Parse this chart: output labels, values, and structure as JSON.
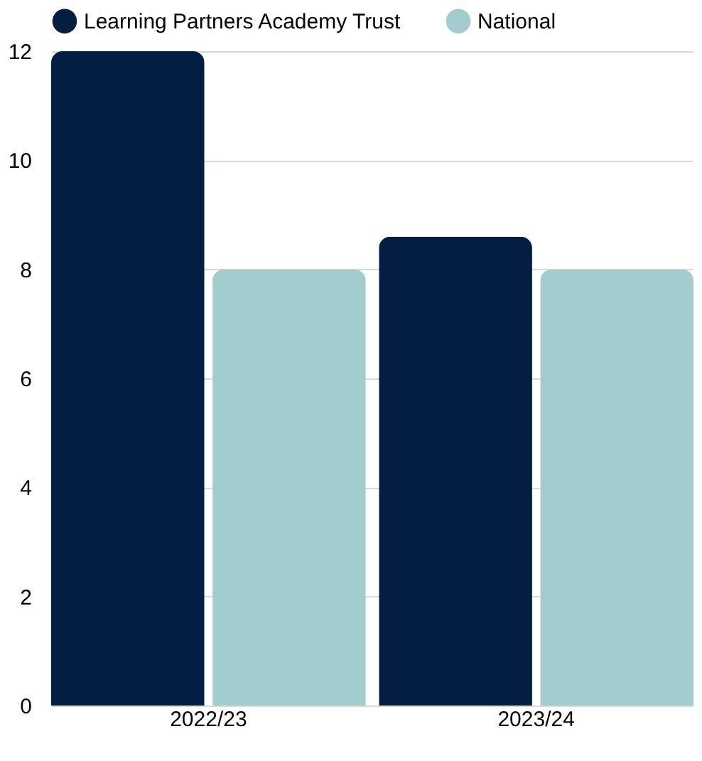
{
  "chart_data": {
    "type": "bar",
    "categories": [
      "2022/23",
      "2023/24"
    ],
    "series": [
      {
        "name": "Learning Partners Academy Trust",
        "color": "#041e42",
        "values": [
          12,
          8.6
        ]
      },
      {
        "name": "National",
        "color": "#a2cdce",
        "values": [
          8,
          8
        ]
      }
    ],
    "ylim": [
      0,
      12
    ],
    "yticks": [
      0,
      2,
      4,
      6,
      8,
      10,
      12
    ],
    "grid": "y",
    "legend": "top"
  }
}
